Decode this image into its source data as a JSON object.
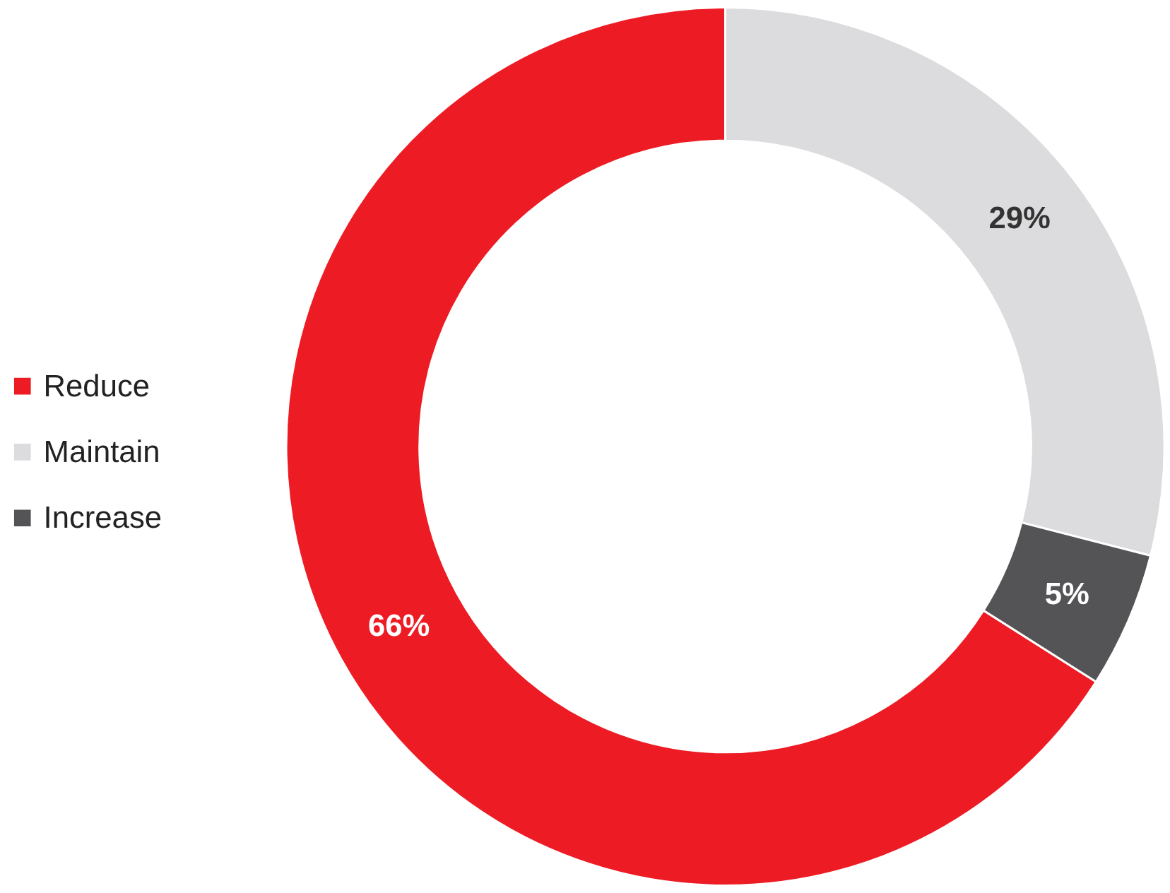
{
  "chart_data": {
    "type": "donut",
    "categories": [
      "Reduce",
      "Maintain",
      "Increase"
    ],
    "values": [
      66,
      29,
      5
    ],
    "colors": [
      "#ed1c24",
      "#dcdcde",
      "#545457"
    ],
    "value_labels": [
      "66%",
      "29%",
      "5%"
    ],
    "legend": "left"
  }
}
